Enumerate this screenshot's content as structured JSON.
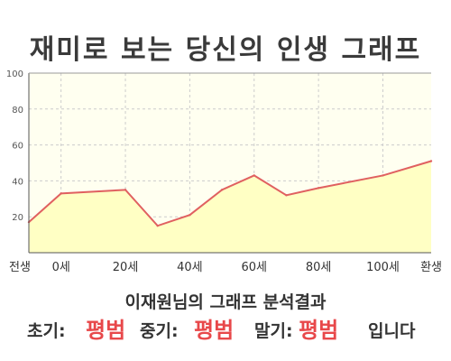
{
  "title": "재미로 보는 당신의 인생 그래프",
  "chart_data": {
    "type": "area",
    "title": "재미로 보는 당신의 인생 그래프",
    "x_labels": [
      "전생",
      "0세",
      "20세",
      "40세",
      "60세",
      "80세",
      "100세",
      "환생"
    ],
    "y_ticks": [
      20,
      40,
      60,
      80,
      100
    ],
    "ylim": [
      0,
      100
    ],
    "grid": true,
    "series": [
      {
        "x": [
          -10,
          0,
          20,
          30,
          40,
          50,
          60,
          70,
          80,
          100,
          115
        ],
        "y": [
          17,
          33,
          35,
          15,
          21,
          35,
          43,
          32,
          36,
          43,
          51
        ]
      }
    ],
    "colors": {
      "line": "#e06060",
      "fill": "#ffffc4",
      "plot_bg": "#fffff0",
      "grid": "#cccccc"
    }
  },
  "caption": "이재원님의 그래프 분석결과",
  "summary": {
    "early_label": "초기:",
    "early_value": "평범",
    "mid_label": "중기:",
    "mid_value": "평범",
    "late_label": "말기:",
    "late_value": "평범",
    "suffix": "입니다"
  }
}
